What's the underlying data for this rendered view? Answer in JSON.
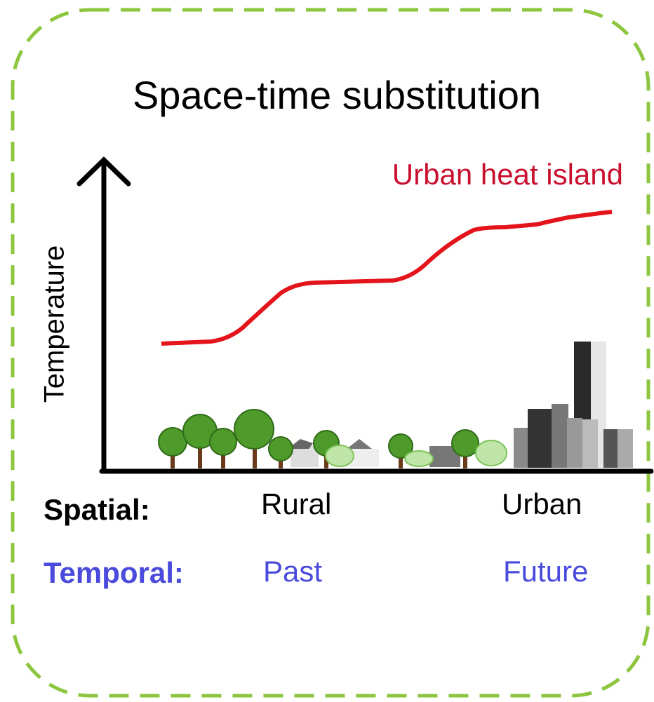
{
  "title": "Space-time substitution",
  "curve_label": "Urban heat island",
  "y_axis_label": "Temperature",
  "rows": [
    {
      "label": "Spatial:",
      "start": "Rural",
      "end": "Urban"
    },
    {
      "label": "Temporal:",
      "start": "Past",
      "end": "Future"
    }
  ]
}
